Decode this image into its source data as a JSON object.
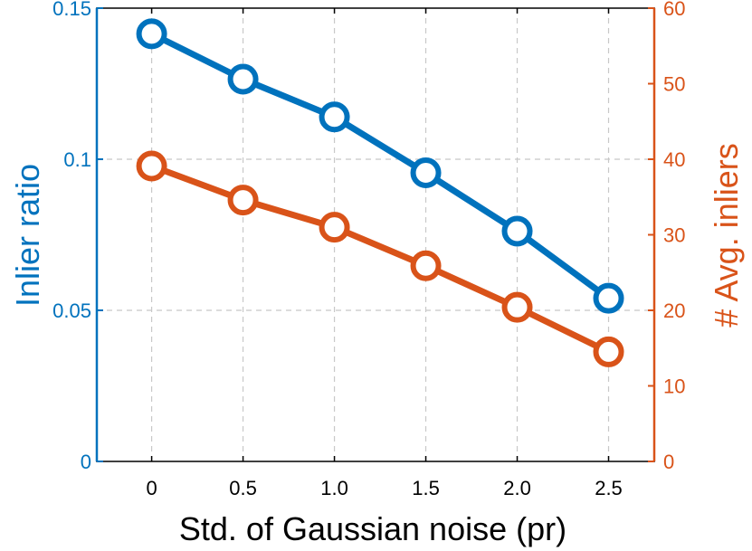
{
  "chart_data": {
    "type": "line",
    "xlabel": "Std. of Gaussian noise (pr)",
    "x": [
      0,
      0.5,
      1.0,
      1.5,
      2.0,
      2.5
    ],
    "x_tick_labels": [
      "0",
      "0.5",
      "1.0",
      "1.5",
      "2.0",
      "2.5"
    ],
    "xlim": [
      -0.3,
      2.75
    ],
    "grid": true,
    "y_left": {
      "label": "Inlier ratio",
      "ylim": [
        0,
        0.15
      ],
      "ticks": [
        0,
        0.05,
        0.1,
        0.15
      ],
      "tick_labels": [
        "0",
        "0.05",
        "0.1",
        "0.15"
      ],
      "color": "#0072BD"
    },
    "y_right": {
      "label": "# Avg. inliers",
      "ylim": [
        0,
        60
      ],
      "ticks": [
        0,
        10,
        20,
        30,
        40,
        50,
        60
      ],
      "tick_labels": [
        "0",
        "10",
        "20",
        "30",
        "40",
        "50",
        "60"
      ],
      "color": "#D95319"
    },
    "series": [
      {
        "axis": "left",
        "color": "#0072BD",
        "marker": "open-circle",
        "values": [
          0.1415,
          0.1265,
          0.114,
          0.0955,
          0.0762,
          0.054
        ]
      },
      {
        "axis": "right",
        "color": "#D95319",
        "marker": "open-circle",
        "values": [
          39.1,
          34.6,
          31.0,
          25.9,
          20.4,
          14.5
        ]
      }
    ]
  }
}
